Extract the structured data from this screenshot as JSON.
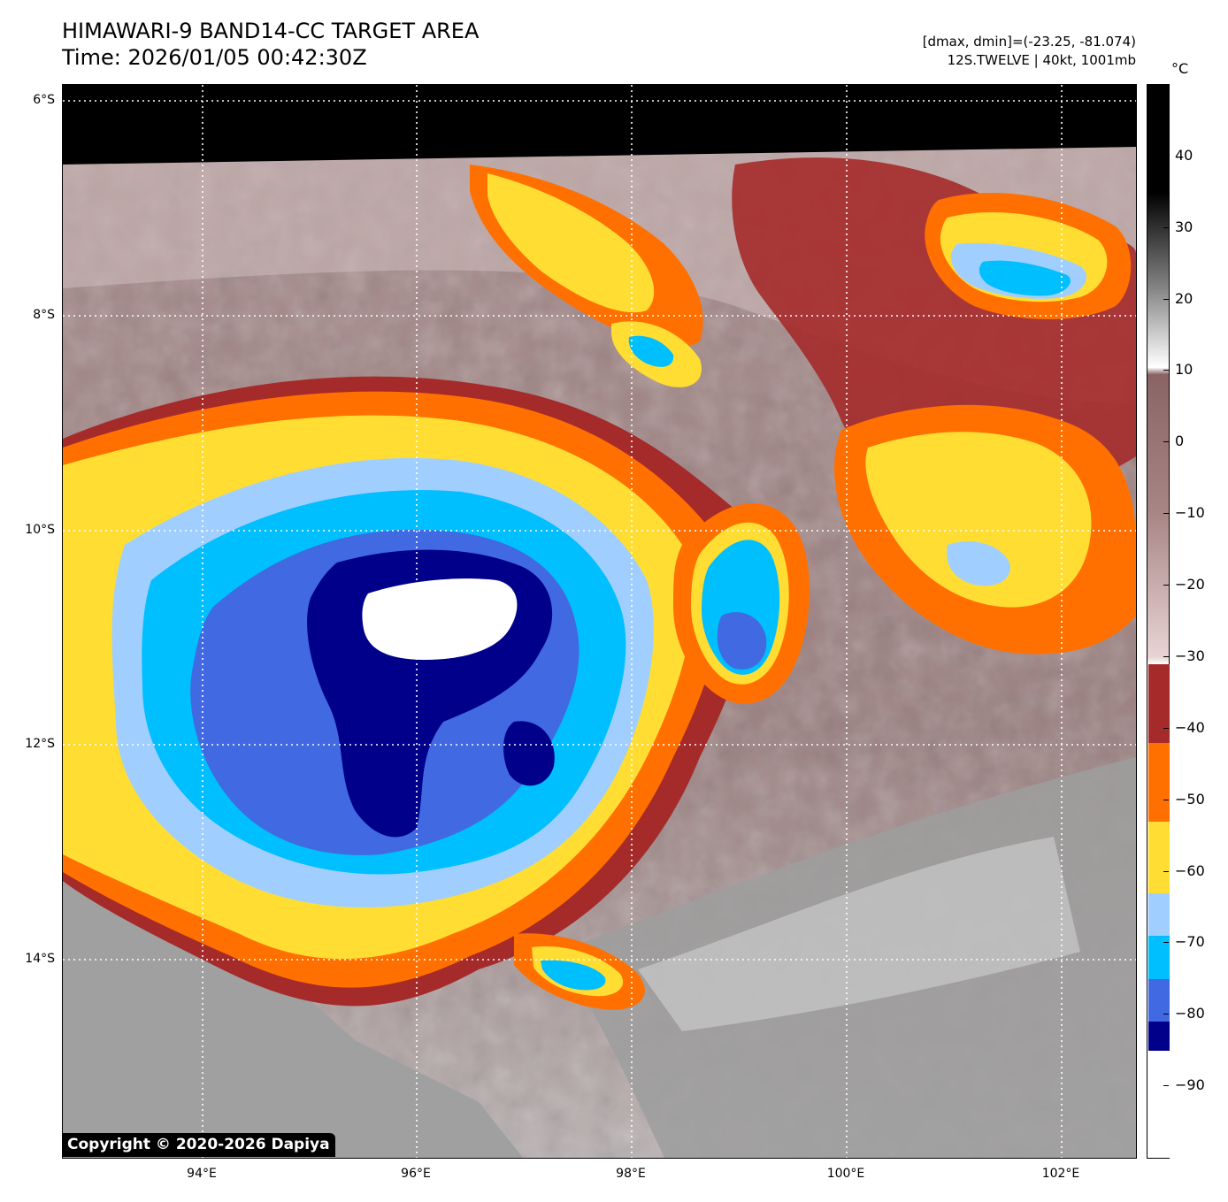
{
  "header": {
    "title_line1": "HIMAWARI-9 BAND14-CC TARGET AREA",
    "title_line2": "Time: 2026/01/05 00:42:30Z",
    "info_line1": "[dmax, dmin]=(-23.25, -81.074)",
    "info_line2": "12S.TWELVE | 40kt, 1001mb"
  },
  "map": {
    "lat_labels": [
      "6°S",
      "8°S",
      "10°S",
      "12°S",
      "14°S"
    ],
    "lon_labels": [
      "94°E",
      "96°E",
      "98°E",
      "100°E",
      "102°E"
    ],
    "lat_range": [
      -15.8,
      -5.8
    ],
    "lon_range": [
      92.7,
      102.7
    ],
    "gridlines": "dotted-white",
    "copyright": "Copyright © 2020-2026 Dapiya"
  },
  "colorbar": {
    "unit": "°C",
    "range": [
      -100,
      50
    ],
    "tick_labels": [
      "40",
      "30",
      "20",
      "10",
      "0",
      "−10",
      "−20",
      "−30",
      "−40",
      "−50",
      "−60",
      "−70",
      "−80",
      "−90"
    ],
    "tick_values": [
      40,
      30,
      20,
      10,
      0,
      -10,
      -20,
      -30,
      -40,
      -50,
      -60,
      -70,
      -80,
      -90
    ],
    "discrete_bands": [
      {
        "from": -100,
        "to": -85,
        "color": "#ffffff"
      },
      {
        "from": -85,
        "to": -81,
        "color": "#00008b"
      },
      {
        "from": -81,
        "to": -75,
        "color": "#4169e1"
      },
      {
        "from": -75,
        "to": -69,
        "color": "#00bfff"
      },
      {
        "from": -69,
        "to": -63,
        "color": "#a0cfff"
      },
      {
        "from": -63,
        "to": -53,
        "color": "#ffdd33"
      },
      {
        "from": -53,
        "to": -42,
        "color": "#ff7000"
      },
      {
        "from": -42,
        "to": -31,
        "color": "#a52a2a"
      }
    ]
  }
}
